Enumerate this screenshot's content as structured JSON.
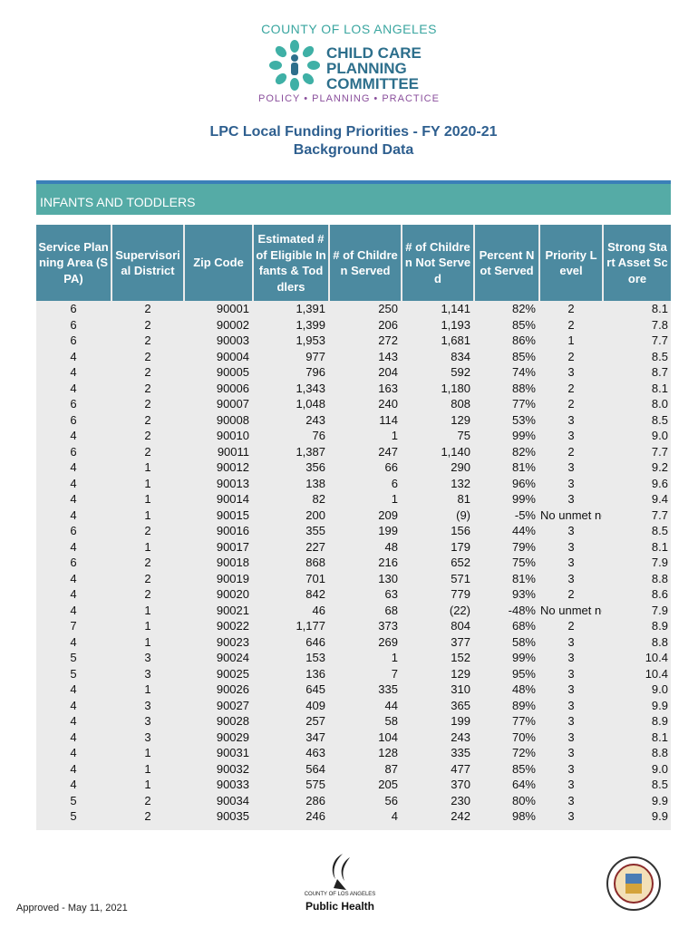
{
  "header": {
    "org": "COUNTY OF LOS ANGELES",
    "committee": [
      "CHILD CARE",
      "PLANNING",
      "COMMITTEE"
    ],
    "tagline": "POLICY • PLANNING • PRACTICE"
  },
  "title": [
    "LPC Local Funding Priorities - FY 2020-21",
    "Background Data"
  ],
  "section": "INFANTS AND TODDLERS",
  "table": {
    "columns": [
      "Service Planning Area (SPA)",
      "Supervisorial District",
      "Zip Code",
      "Estimated # of Eligible Infants & Toddlers",
      "# of Children Served",
      "# of Children Not Served",
      "Percent Not Served",
      "Priority Level",
      "Strong Start Asset Score"
    ],
    "rows": [
      [
        "6",
        "2",
        "90001",
        "1,391",
        "250",
        "1,141",
        "82%",
        "2",
        "8.1"
      ],
      [
        "6",
        "2",
        "90002",
        "1,399",
        "206",
        "1,193",
        "85%",
        "2",
        "7.8"
      ],
      [
        "6",
        "2",
        "90003",
        "1,953",
        "272",
        "1,681",
        "86%",
        "1",
        "7.7"
      ],
      [
        "4",
        "2",
        "90004",
        "977",
        "143",
        "834",
        "85%",
        "2",
        "8.5"
      ],
      [
        "4",
        "2",
        "90005",
        "796",
        "204",
        "592",
        "74%",
        "3",
        "8.7"
      ],
      [
        "4",
        "2",
        "90006",
        "1,343",
        "163",
        "1,180",
        "88%",
        "2",
        "8.1"
      ],
      [
        "6",
        "2",
        "90007",
        "1,048",
        "240",
        "808",
        "77%",
        "2",
        "8.0"
      ],
      [
        "6",
        "2",
        "90008",
        "243",
        "114",
        "129",
        "53%",
        "3",
        "8.5"
      ],
      [
        "4",
        "2",
        "90010",
        "76",
        "1",
        "75",
        "99%",
        "3",
        "9.0"
      ],
      [
        "6",
        "2",
        "90011",
        "1,387",
        "247",
        "1,140",
        "82%",
        "2",
        "7.7"
      ],
      [
        "4",
        "1",
        "90012",
        "356",
        "66",
        "290",
        "81%",
        "3",
        "9.2"
      ],
      [
        "4",
        "1",
        "90013",
        "138",
        "6",
        "132",
        "96%",
        "3",
        "9.6"
      ],
      [
        "4",
        "1",
        "90014",
        "82",
        "1",
        "81",
        "99%",
        "3",
        "9.4"
      ],
      [
        "4",
        "1",
        "90015",
        "200",
        "209",
        "(9)",
        "-5%",
        "No unmet need",
        "7.7"
      ],
      [
        "6",
        "2",
        "90016",
        "355",
        "199",
        "156",
        "44%",
        "3",
        "8.5"
      ],
      [
        "4",
        "1",
        "90017",
        "227",
        "48",
        "179",
        "79%",
        "3",
        "8.1"
      ],
      [
        "6",
        "2",
        "90018",
        "868",
        "216",
        "652",
        "75%",
        "3",
        "7.9"
      ],
      [
        "4",
        "2",
        "90019",
        "701",
        "130",
        "571",
        "81%",
        "3",
        "8.8"
      ],
      [
        "4",
        "2",
        "90020",
        "842",
        "63",
        "779",
        "93%",
        "2",
        "8.6"
      ],
      [
        "4",
        "1",
        "90021",
        "46",
        "68",
        "(22)",
        "-48%",
        "No unmet need",
        "7.9"
      ],
      [
        "7",
        "1",
        "90022",
        "1,177",
        "373",
        "804",
        "68%",
        "2",
        "8.9"
      ],
      [
        "4",
        "1",
        "90023",
        "646",
        "269",
        "377",
        "58%",
        "3",
        "8.8"
      ],
      [
        "5",
        "3",
        "90024",
        "153",
        "1",
        "152",
        "99%",
        "3",
        "10.4"
      ],
      [
        "5",
        "3",
        "90025",
        "136",
        "7",
        "129",
        "95%",
        "3",
        "10.4"
      ],
      [
        "4",
        "1",
        "90026",
        "645",
        "335",
        "310",
        "48%",
        "3",
        "9.0"
      ],
      [
        "4",
        "3",
        "90027",
        "409",
        "44",
        "365",
        "89%",
        "3",
        "9.9"
      ],
      [
        "4",
        "3",
        "90028",
        "257",
        "58",
        "199",
        "77%",
        "3",
        "8.9"
      ],
      [
        "4",
        "3",
        "90029",
        "347",
        "104",
        "243",
        "70%",
        "3",
        "8.1"
      ],
      [
        "4",
        "1",
        "90031",
        "463",
        "128",
        "335",
        "72%",
        "3",
        "8.8"
      ],
      [
        "4",
        "1",
        "90032",
        "564",
        "87",
        "477",
        "85%",
        "3",
        "9.0"
      ],
      [
        "4",
        "1",
        "90033",
        "575",
        "205",
        "370",
        "64%",
        "3",
        "8.5"
      ],
      [
        "5",
        "2",
        "90034",
        "286",
        "56",
        "230",
        "80%",
        "3",
        "9.9"
      ],
      [
        "5",
        "2",
        "90035",
        "246",
        "4",
        "242",
        "98%",
        "3",
        "9.9"
      ]
    ]
  },
  "footer": {
    "approved": "Approved - May 11, 2021",
    "logo_org": "COUNTY OF LOS ANGELES",
    "logo_name": "Public Health"
  }
}
